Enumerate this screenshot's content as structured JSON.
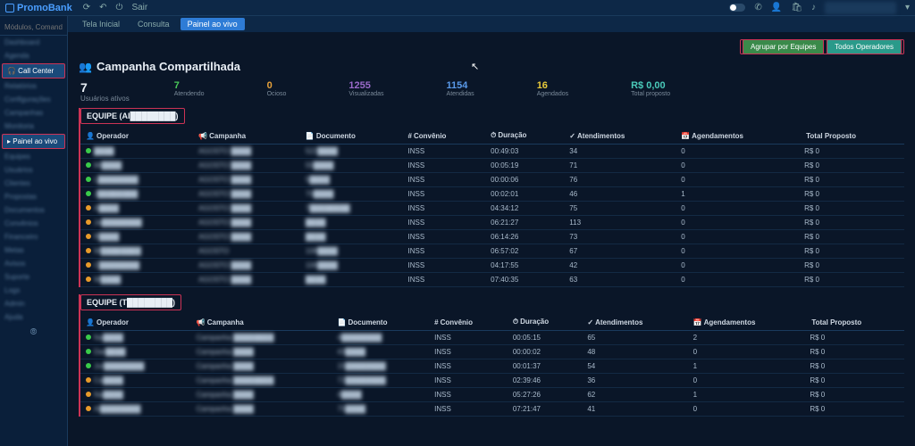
{
  "brand": "PromoBank",
  "topbar": {
    "sair": "Sair"
  },
  "search_placeholder": "Módulos, Comandos",
  "sidebar": {
    "items": [
      "Dashboard",
      "Agenda",
      "Call Center",
      "Relatórios",
      "Configurações",
      "Campanhas",
      "Monitoria",
      "Painel ao vivo",
      "Equipes",
      "Usuários",
      "Clientes",
      "Propostas",
      "Documentos",
      "Convênios",
      "Financeiro",
      "Metas",
      "Avisos",
      "Suporte",
      "Logs",
      "Admin",
      "Ajuda"
    ],
    "active1": "Call Center",
    "active2": "Painel ao vivo"
  },
  "tabs": [
    {
      "label": "Tela Inicial",
      "active": false
    },
    {
      "label": "Consulta",
      "active": false
    },
    {
      "label": "Painel ao vivo",
      "active": true
    }
  ],
  "actions": {
    "group": "Agrupar por Equipes",
    "all": "Todos Operadores"
  },
  "page_title": "Campanha Compartilhada",
  "users_active": {
    "num": "7",
    "label": "Usuários ativos"
  },
  "stats": [
    {
      "num": "7",
      "label": "Atendendo",
      "color": "c-green"
    },
    {
      "num": "0",
      "label": "Ocioso",
      "color": "c-orange"
    },
    {
      "num": "1255",
      "label": "Visualizadas",
      "color": "c-purple"
    },
    {
      "num": "1154",
      "label": "Atendidas",
      "color": "c-blue"
    },
    {
      "num": "16",
      "label": "Agendados",
      "color": "c-yellow"
    },
    {
      "num": "R$ 0,00",
      "label": "Total proposto",
      "color": "c-teal"
    }
  ],
  "columns": [
    "Operador",
    "Campanha",
    "Documento",
    "Convênio",
    "Duração",
    "Atendimentos",
    "Agendamentos",
    "Total Proposto"
  ],
  "team1": {
    "name": "EQUIPE (AI████████)",
    "rows": [
      {
        "dot": "dot-green",
        "op": "████",
        "camp": "AGOSTO ████",
        "doc": "522████",
        "conv": "INSS",
        "dur": "00:49:03",
        "at": "34",
        "ag": "0",
        "tot": "R$ 0"
      },
      {
        "dot": "dot-green",
        "op": "Mi████",
        "camp": "AGOSTO ████",
        "doc": "55████",
        "conv": "INSS",
        "dur": "00:05:19",
        "at": "71",
        "ag": "0",
        "tot": "R$ 0"
      },
      {
        "dot": "dot-green",
        "op": "L████████",
        "camp": "AGOSTO ████",
        "doc": "5████",
        "conv": "INSS",
        "dur": "00:00:06",
        "at": "76",
        "ag": "0",
        "tot": "R$ 0"
      },
      {
        "dot": "dot-green",
        "op": "J████████",
        "camp": "AGOSTO ████",
        "doc": "70████",
        "conv": "INSS",
        "dur": "00:02:01",
        "at": "46",
        "ag": "1",
        "tot": "R$ 0"
      },
      {
        "dot": "dot-orange",
        "op": "A████",
        "camp": "AGOSTO ████",
        "doc": "7████████",
        "conv": "INSS",
        "dur": "04:34:12",
        "at": "75",
        "ag": "0",
        "tot": "R$ 0"
      },
      {
        "dot": "dot-orange",
        "op": "Ja████████",
        "camp": "AGOSTO ████",
        "doc": "████",
        "conv": "INSS",
        "dur": "06:21:27",
        "at": "113",
        "ag": "0",
        "tot": "R$ 0"
      },
      {
        "dot": "dot-orange",
        "op": "R████",
        "camp": "AGOSTO ████",
        "doc": "████",
        "conv": "INSS",
        "dur": "06:14:26",
        "at": "73",
        "ag": "0",
        "tot": "R$ 0"
      },
      {
        "dot": "dot-orange",
        "op": "W████████",
        "camp": "AGOSTO",
        "doc": "108████",
        "conv": "INSS",
        "dur": "06:57:02",
        "at": "67",
        "ag": "0",
        "tot": "R$ 0"
      },
      {
        "dot": "dot-orange",
        "op": "C████████",
        "camp": "AGOSTO ████",
        "doc": "106████",
        "conv": "INSS",
        "dur": "04:17:55",
        "at": "42",
        "ag": "0",
        "tot": "R$ 0"
      },
      {
        "dot": "dot-orange",
        "op": "W████",
        "camp": "AGOSTO ████",
        "doc": "████",
        "conv": "INSS",
        "dur": "07:40:35",
        "at": "63",
        "ag": "0",
        "tot": "R$ 0"
      }
    ]
  },
  "team2": {
    "name": "EQUIPE (T████████)",
    "rows": [
      {
        "dot": "dot-green",
        "op": "Na████",
        "camp": "Campanha ████████",
        "doc": "4████████",
        "conv": "INSS",
        "dur": "00:05:15",
        "at": "65",
        "ag": "2",
        "tot": "R$ 0"
      },
      {
        "dot": "dot-green",
        "op": "Dar████",
        "camp": "Campanha ████",
        "doc": "43████",
        "conv": "INSS",
        "dur": "00:00:02",
        "at": "48",
        "ag": "0",
        "tot": "R$ 0"
      },
      {
        "dot": "dot-green",
        "op": "Jor████████",
        "camp": "Campanha ████",
        "doc": "15████████",
        "conv": "INSS",
        "dur": "00:01:37",
        "at": "54",
        "ag": "1",
        "tot": "R$ 0"
      },
      {
        "dot": "dot-orange",
        "op": "Ca████",
        "camp": "Campanha ████████",
        "doc": "72████████",
        "conv": "INSS",
        "dur": "02:39:46",
        "at": "36",
        "ag": "0",
        "tot": "R$ 0"
      },
      {
        "dot": "dot-orange",
        "op": "Na████",
        "camp": "Campanha ████",
        "doc": "4████",
        "conv": "INSS",
        "dur": "05:27:26",
        "at": "62",
        "ag": "1",
        "tot": "R$ 0"
      },
      {
        "dot": "dot-orange",
        "op": "Al████████",
        "camp": "Campanha ████",
        "doc": "75████",
        "conv": "INSS",
        "dur": "07:21:47",
        "at": "41",
        "ag": "0",
        "tot": "R$ 0"
      }
    ]
  }
}
